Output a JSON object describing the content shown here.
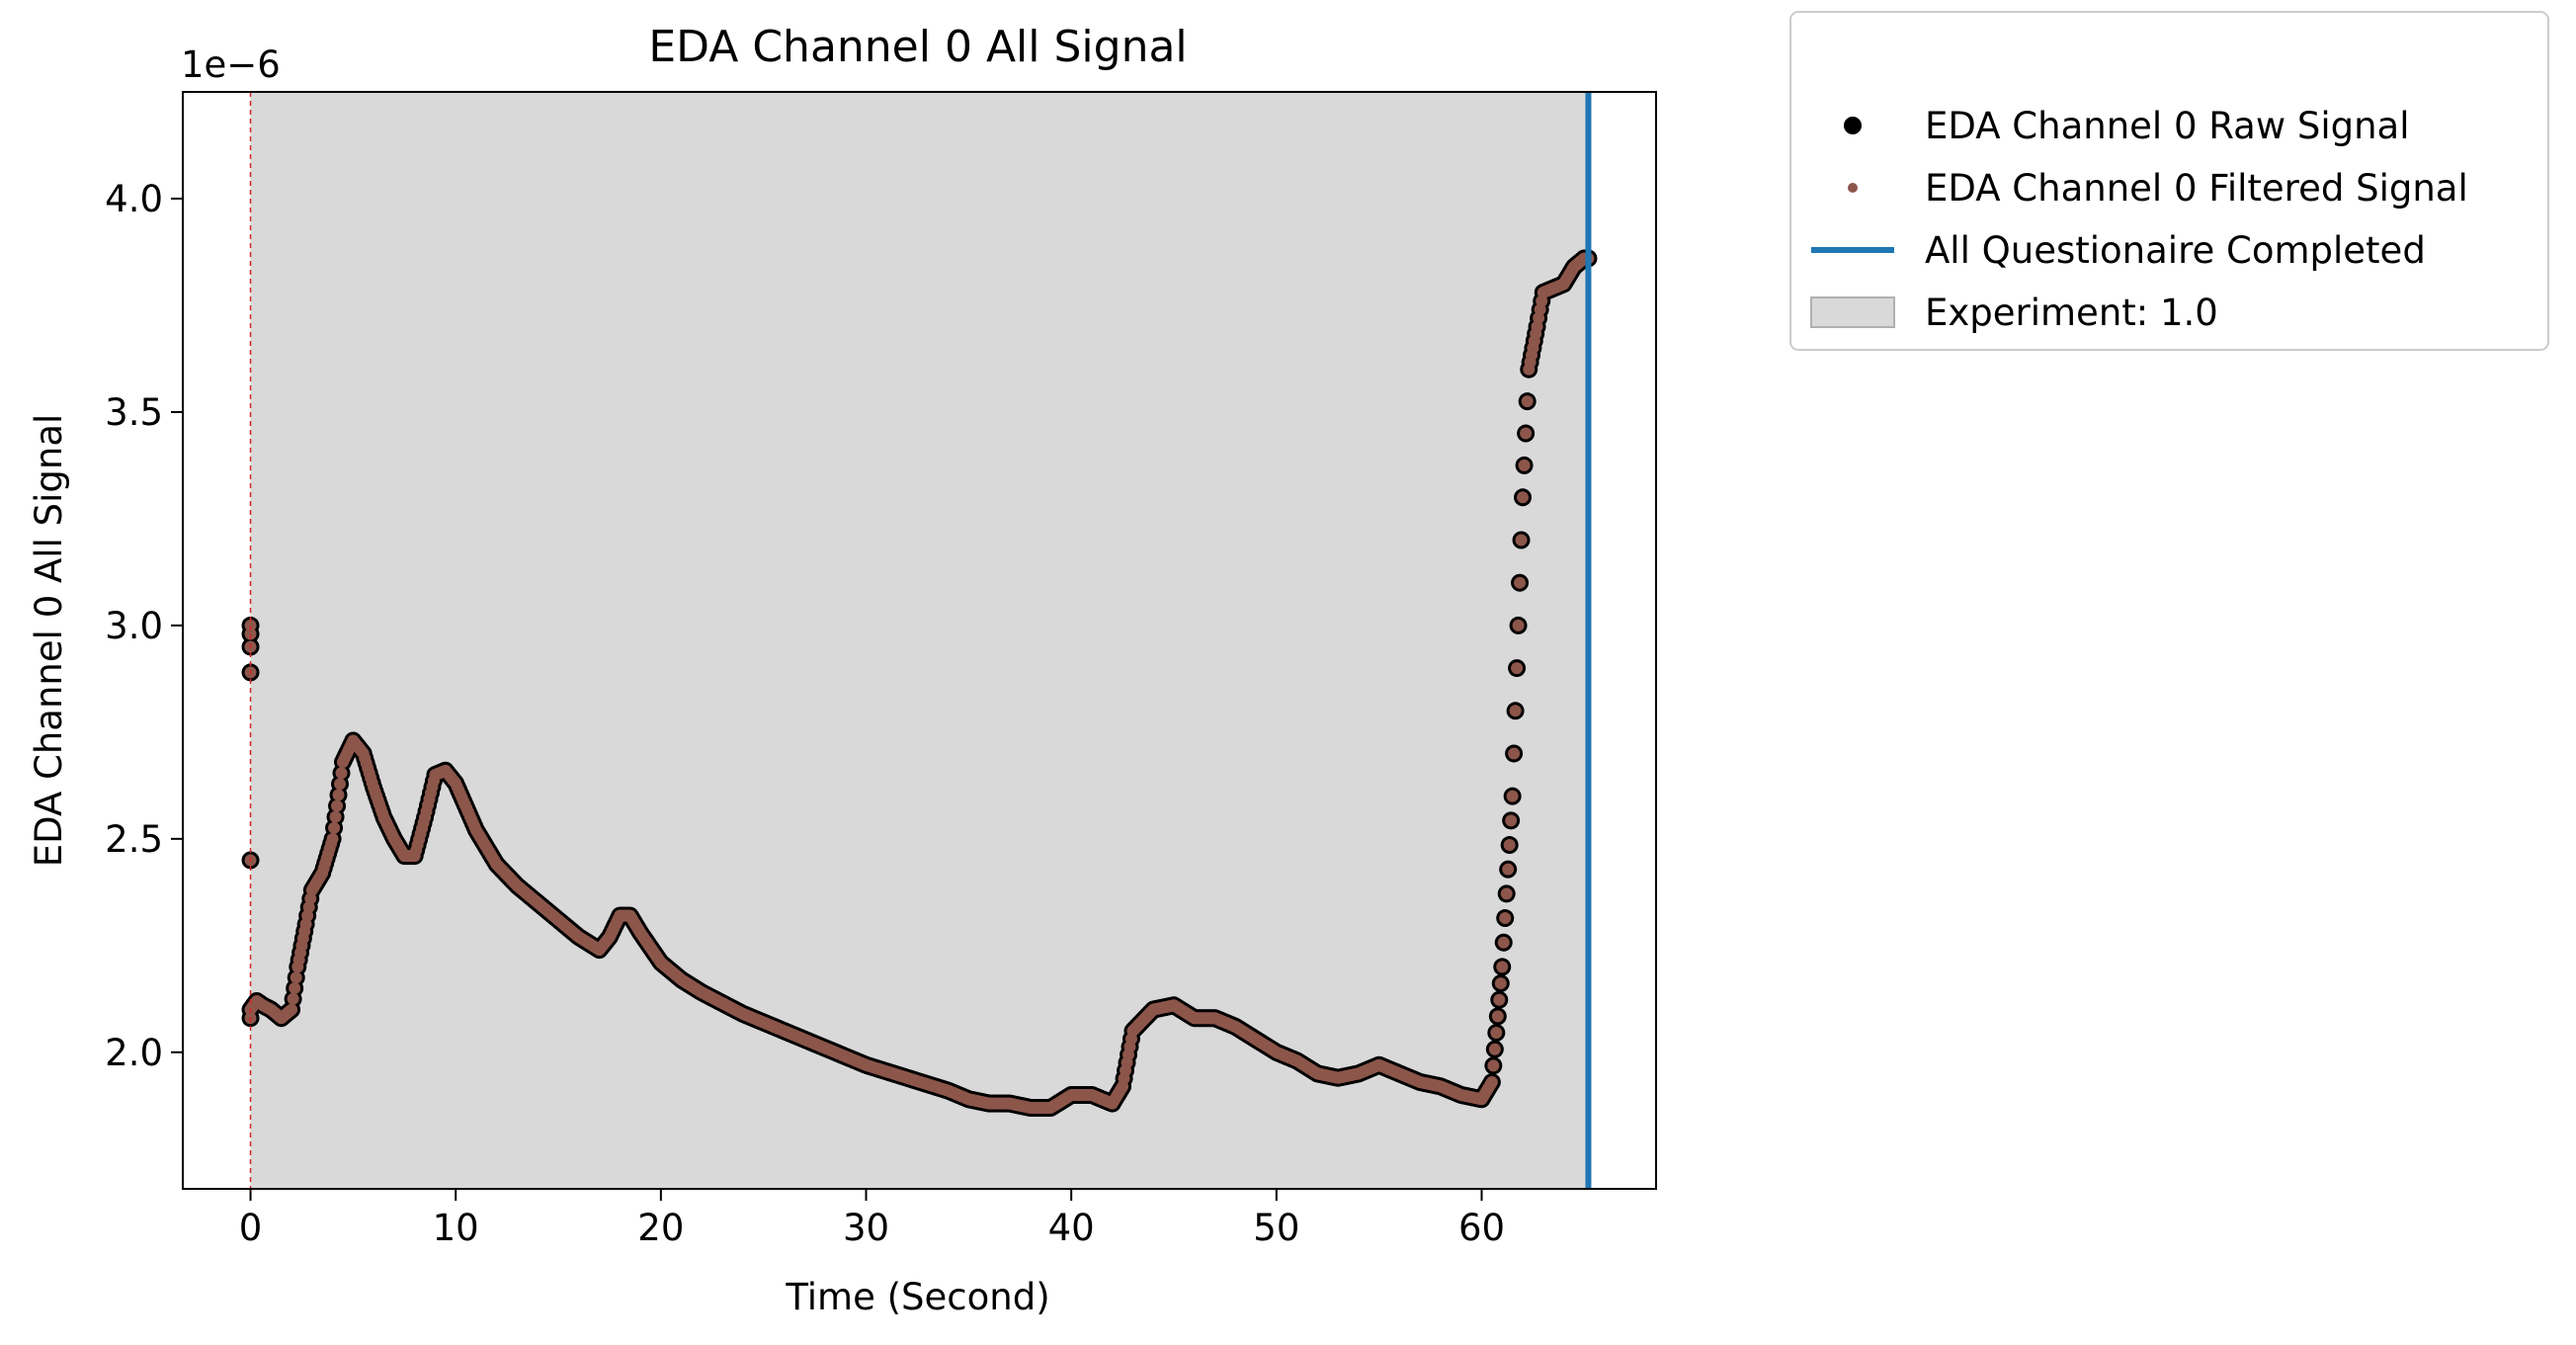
{
  "chart_data": {
    "type": "scatter",
    "title": "EDA Channel 0 All Signal",
    "xlabel": "Time (Second)",
    "ylabel": "EDA Channel 0 All Signal",
    "y_offset_label": "1e−6",
    "xlim": [
      -3.3,
      68.5
    ],
    "ylim": [
      1.68,
      4.25
    ],
    "y_scale_note": "values in units of 1e-6",
    "xticks": [
      0,
      10,
      20,
      30,
      40,
      50,
      60
    ],
    "yticks": [
      2.0,
      2.5,
      3.0,
      3.5,
      4.0
    ],
    "ytick_labels": [
      "2.0",
      "2.5",
      "3.0",
      "3.5",
      "4.0"
    ],
    "grid": false,
    "legend_placement": "outside-top-right",
    "legend": [
      {
        "label": "EDA Channel 0 Raw Signal",
        "kind": "marker",
        "color": "#000000"
      },
      {
        "label": "EDA Channel 0 Filtered Signal",
        "kind": "marker",
        "color": "#8c564b"
      },
      {
        "label": "All Questionaire Completed",
        "kind": "line",
        "color": "#1f77b4"
      },
      {
        "label": "Experiment: 1.0",
        "kind": "patch",
        "color": "#d9d9d9"
      }
    ],
    "colors": {
      "raw": "#000000",
      "filtered": "#8c564b",
      "vline": "#1f77b4",
      "span": "#d9d9d9",
      "start_line": "#d62728"
    },
    "experiment_span": [
      0.0,
      65.2
    ],
    "questionnaire_completed_x": 65.2,
    "start_marker_x": 0.0,
    "series": [
      {
        "name": "EDA Channel 0 Raw Signal",
        "x": [
          0,
          0.3,
          0.6,
          1.0,
          1.5,
          2.0,
          2.3,
          2.7,
          3.0,
          3.5,
          4.0,
          4.5,
          5.0,
          5.5,
          6.0,
          6.5,
          7.0,
          7.5,
          8.0,
          8.5,
          9.0,
          9.5,
          10.0,
          11.0,
          12.0,
          13.0,
          14.0,
          15.0,
          16.0,
          17.0,
          17.5,
          18.0,
          18.5,
          19.0,
          20.0,
          21.0,
          22.0,
          24.0,
          26.0,
          28.0,
          30.0,
          32.0,
          34.0,
          35.0,
          36.0,
          37.0,
          38.0,
          39.0,
          40.0,
          41.0,
          42.0,
          42.5,
          43.0,
          44.0,
          45.0,
          46.0,
          47.0,
          48.0,
          49.0,
          50.0,
          51.0,
          52.0,
          53.0,
          54.0,
          55.0,
          56.0,
          57.0,
          58.0,
          59.0,
          60.0,
          60.5,
          61.0,
          61.5,
          62.0,
          62.3,
          62.7,
          63.0,
          63.5,
          64.0,
          64.5,
          65.0,
          65.2
        ],
        "y": [
          2.1,
          2.12,
          2.11,
          2.1,
          2.08,
          2.1,
          2.2,
          2.3,
          2.38,
          2.42,
          2.5,
          2.68,
          2.73,
          2.7,
          2.62,
          2.55,
          2.5,
          2.46,
          2.46,
          2.55,
          2.65,
          2.66,
          2.63,
          2.52,
          2.44,
          2.39,
          2.35,
          2.31,
          2.27,
          2.24,
          2.27,
          2.32,
          2.32,
          2.28,
          2.21,
          2.17,
          2.14,
          2.09,
          2.05,
          2.01,
          1.97,
          1.94,
          1.91,
          1.89,
          1.88,
          1.88,
          1.87,
          1.87,
          1.9,
          1.9,
          1.88,
          1.92,
          2.05,
          2.1,
          2.11,
          2.08,
          2.08,
          2.06,
          2.03,
          2.0,
          1.98,
          1.95,
          1.94,
          1.95,
          1.97,
          1.95,
          1.93,
          1.92,
          1.9,
          1.89,
          1.93,
          2.2,
          2.6,
          3.3,
          3.6,
          3.7,
          3.78,
          3.79,
          3.8,
          3.84,
          3.86,
          3.86
        ]
      },
      {
        "name": "EDA Channel 0 Filtered Signal",
        "x": [
          0,
          0.3,
          0.6,
          1.0,
          1.5,
          2.0,
          2.3,
          2.7,
          3.0,
          3.5,
          4.0,
          4.5,
          5.0,
          5.5,
          6.0,
          6.5,
          7.0,
          7.5,
          8.0,
          8.5,
          9.0,
          9.5,
          10.0,
          11.0,
          12.0,
          13.0,
          14.0,
          15.0,
          16.0,
          17.0,
          17.5,
          18.0,
          18.5,
          19.0,
          20.0,
          21.0,
          22.0,
          24.0,
          26.0,
          28.0,
          30.0,
          32.0,
          34.0,
          35.0,
          36.0,
          37.0,
          38.0,
          39.0,
          40.0,
          41.0,
          42.0,
          42.5,
          43.0,
          44.0,
          45.0,
          46.0,
          47.0,
          48.0,
          49.0,
          50.0,
          51.0,
          52.0,
          53.0,
          54.0,
          55.0,
          56.0,
          57.0,
          58.0,
          59.0,
          60.0,
          60.5,
          61.0,
          61.5,
          62.0,
          62.3,
          62.7,
          63.0,
          63.5,
          64.0,
          64.5,
          65.0,
          65.2
        ],
        "y": [
          2.1,
          2.12,
          2.11,
          2.1,
          2.08,
          2.1,
          2.2,
          2.3,
          2.38,
          2.42,
          2.5,
          2.68,
          2.73,
          2.7,
          2.62,
          2.55,
          2.5,
          2.46,
          2.46,
          2.55,
          2.65,
          2.66,
          2.63,
          2.52,
          2.44,
          2.39,
          2.35,
          2.31,
          2.27,
          2.24,
          2.27,
          2.32,
          2.32,
          2.28,
          2.21,
          2.17,
          2.14,
          2.09,
          2.05,
          2.01,
          1.97,
          1.94,
          1.91,
          1.89,
          1.88,
          1.88,
          1.87,
          1.87,
          1.9,
          1.9,
          1.88,
          1.92,
          2.05,
          2.1,
          2.11,
          2.08,
          2.08,
          2.06,
          2.03,
          2.0,
          1.98,
          1.95,
          1.94,
          1.95,
          1.97,
          1.95,
          1.93,
          1.92,
          1.9,
          1.89,
          1.93,
          2.2,
          2.6,
          3.3,
          3.6,
          3.7,
          3.78,
          3.79,
          3.8,
          3.84,
          3.86,
          3.86
        ]
      }
    ],
    "outliers_raw": {
      "x": [
        0,
        0,
        0,
        0,
        0,
        0
      ],
      "y": [
        3.0,
        2.98,
        2.95,
        2.89,
        2.45,
        2.08
      ]
    }
  }
}
